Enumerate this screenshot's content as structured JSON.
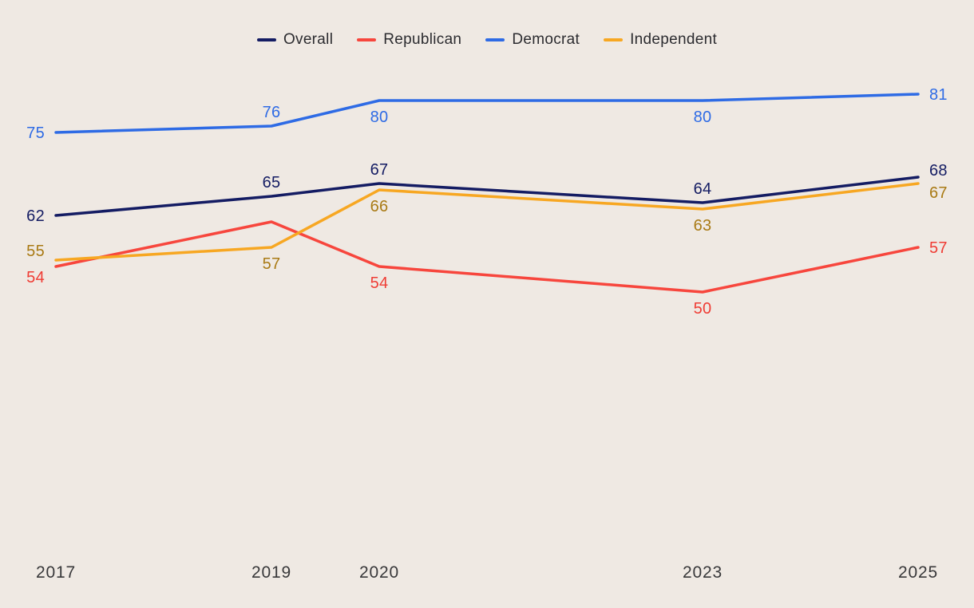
{
  "chart_data": {
    "type": "line",
    "title": "",
    "x": [
      2017,
      2019,
      2020,
      2023,
      2025
    ],
    "x_tick_labels": [
      "2017",
      "2019",
      "2020",
      "2023",
      "2025"
    ],
    "x_range": [
      2017,
      2025
    ],
    "ylim": [
      40,
      90
    ],
    "grid": false,
    "legend_position": "top-center",
    "background_color": "#efe9e3",
    "series": [
      {
        "name": "Overall",
        "color": "#141c63",
        "label_color": "#141c63",
        "values": [
          62,
          65,
          67,
          64,
          68
        ],
        "point_labels": [
          "62",
          "65",
          "67",
          "64",
          "68"
        ],
        "label_pos": [
          "left",
          "above",
          "above",
          "above",
          "right-up"
        ]
      },
      {
        "name": "Republican",
        "color": "#f7463d",
        "label_color": "#ef3c34",
        "values": [
          54,
          61,
          54,
          50,
          57
        ],
        "point_labels": [
          "54",
          "",
          "54",
          "50",
          "57"
        ],
        "label_pos": [
          "left-down",
          "",
          "below",
          "below",
          "right"
        ]
      },
      {
        "name": "Democrat",
        "color": "#2e6be5",
        "label_color": "#2e6be5",
        "values": [
          75,
          76,
          80,
          80,
          81
        ],
        "point_labels": [
          "75",
          "76",
          "80",
          "80",
          "81"
        ],
        "label_pos": [
          "left",
          "above",
          "below",
          "below",
          "right"
        ]
      },
      {
        "name": "Independent",
        "color": "#f7a722",
        "label_color": "#a97a14",
        "values": [
          55,
          57,
          66,
          63,
          67
        ],
        "point_labels": [
          "55",
          "57",
          "66",
          "63",
          "67"
        ],
        "label_pos": [
          "left-up",
          "below",
          "below",
          "below",
          "right-down"
        ]
      }
    ]
  }
}
